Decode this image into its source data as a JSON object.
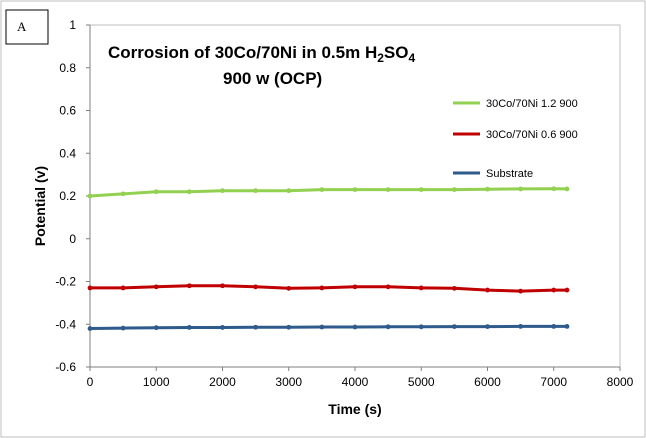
{
  "chart_data": {
    "type": "line",
    "panel_label": "A",
    "title_line1_prefix": "Corrosion of 30Co/70Ni in 0.5m H",
    "title_sub1": "2",
    "title_mid": "SO",
    "title_sub2": "4",
    "title_line2": "900 w (OCP)",
    "xlabel": "Time (s)",
    "ylabel": "Potential (v)",
    "xlim": [
      0,
      8000
    ],
    "ylim": [
      -0.6,
      1.0
    ],
    "xticks": [
      "0",
      "1000",
      "2000",
      "3000",
      "4000",
      "5000",
      "6000",
      "7000",
      "8000"
    ],
    "yticks": [
      "-0.6",
      "-0.4",
      "-0.2",
      "0",
      "0.2",
      "0.4",
      "0.6",
      "0.8",
      "1"
    ],
    "grid": false,
    "legend_position": "top-right",
    "series": [
      {
        "name": "30Co/70Ni 1.2 900",
        "color": "#92d050",
        "x": [
          0,
          500,
          1000,
          1500,
          2000,
          2500,
          3000,
          3500,
          4000,
          4500,
          5000,
          5500,
          6000,
          6500,
          7000,
          7200
        ],
        "y": [
          0.2,
          0.21,
          0.22,
          0.22,
          0.225,
          0.225,
          0.225,
          0.23,
          0.23,
          0.23,
          0.23,
          0.23,
          0.232,
          0.233,
          0.234,
          0.233
        ]
      },
      {
        "name": "30Co/70Ni 0.6 900",
        "color": "#c00000",
        "x": [
          0,
          500,
          1000,
          1500,
          2000,
          2500,
          3000,
          3500,
          4000,
          4500,
          5000,
          5500,
          6000,
          6500,
          7000,
          7200
        ],
        "y": [
          -0.23,
          -0.23,
          -0.225,
          -0.22,
          -0.22,
          -0.225,
          -0.232,
          -0.23,
          -0.225,
          -0.225,
          -0.23,
          -0.232,
          -0.24,
          -0.245,
          -0.24,
          -0.24
        ]
      },
      {
        "name": "Substrate",
        "color": "#2e5a8c",
        "x": [
          0,
          500,
          1000,
          1500,
          2000,
          2500,
          3000,
          3500,
          4000,
          4500,
          5000,
          5500,
          6000,
          6500,
          7000,
          7200
        ],
        "y": [
          -0.42,
          -0.418,
          -0.416,
          -0.415,
          -0.415,
          -0.414,
          -0.414,
          -0.413,
          -0.413,
          -0.412,
          -0.412,
          -0.411,
          -0.411,
          -0.41,
          -0.41,
          -0.41
        ]
      }
    ]
  }
}
